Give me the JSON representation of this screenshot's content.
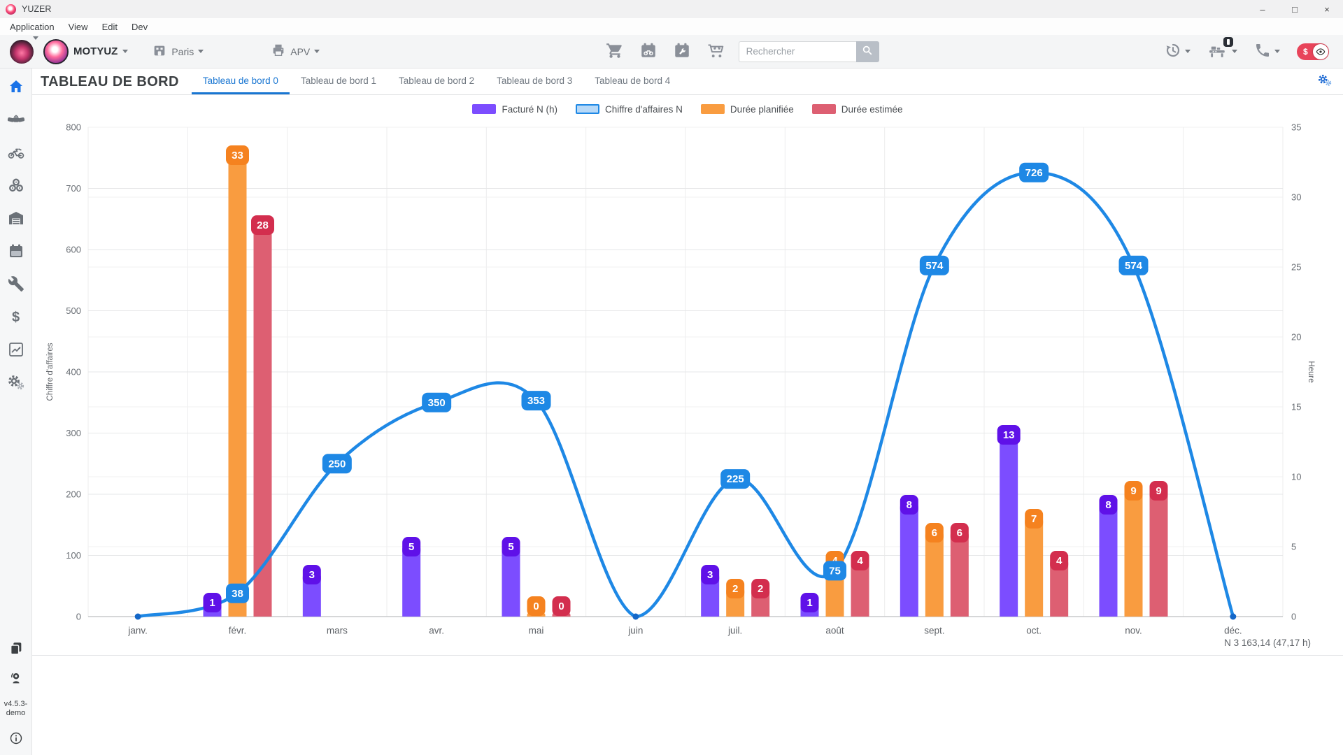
{
  "window": {
    "title": "YUZER"
  },
  "menubar": {
    "items": [
      "Application",
      "View",
      "Edit",
      "Dev"
    ]
  },
  "toolbar": {
    "org_label": "MOTYUZ",
    "site_label": "Paris",
    "dept_label": "APV",
    "search": {
      "placeholder": "Rechercher"
    },
    "currency_symbol": "$"
  },
  "page": {
    "title": "TABLEAU DE BORD",
    "tabs": [
      "Tableau de bord 0",
      "Tableau de bord 1",
      "Tableau de bord 2",
      "Tableau de bord 3",
      "Tableau de bord 4"
    ],
    "active_tab_index": 0
  },
  "sidebar": {
    "version": "v4.5.3-demo"
  },
  "chart_data": {
    "type": "bar+line",
    "categories": [
      "janv.",
      "févr.",
      "mars",
      "avr.",
      "mai",
      "juin",
      "juil.",
      "août",
      "sept.",
      "oct.",
      "nov.",
      "déc."
    ],
    "series": [
      {
        "name": "Facturé N (h)",
        "type": "bar",
        "axis": "right",
        "slot": -1,
        "color": "#7c4dff",
        "badge_color": "#5f11e8",
        "values": [
          null,
          1,
          3,
          5,
          5,
          null,
          3,
          1,
          8,
          13,
          8,
          null
        ]
      },
      {
        "name": "Chiffre d'affaires N",
        "type": "line",
        "axis": "left",
        "color": "#1e88e5",
        "dot_color": "#1467c8",
        "swatch_fill": "#b7d9f8",
        "values": [
          0,
          38,
          250,
          350,
          353,
          0,
          225,
          75,
          574,
          726,
          574,
          0
        ]
      },
      {
        "name": "Durée planifiée",
        "type": "bar",
        "axis": "right",
        "slot": 0,
        "color": "#f99c40",
        "badge_color": "#f5821f",
        "values": [
          null,
          33,
          null,
          null,
          0,
          null,
          2,
          4,
          6,
          7,
          9,
          null
        ]
      },
      {
        "name": "Durée estimée",
        "type": "bar",
        "axis": "right",
        "slot": 1,
        "color": "#dd5f72",
        "badge_color": "#d32e4e",
        "values": [
          null,
          28,
          null,
          null,
          0,
          null,
          2,
          4,
          6,
          4,
          9,
          null
        ]
      }
    ],
    "left_axis": {
      "label": "Chiffre d'affaires",
      "min": 0,
      "max": 800,
      "step": 100
    },
    "right_axis": {
      "label": "Heure",
      "min": 0,
      "max": 35,
      "step": 5
    },
    "legend_position": "top",
    "grid": true
  },
  "footer_summary": "N 3 163,14 (47,17 h)"
}
